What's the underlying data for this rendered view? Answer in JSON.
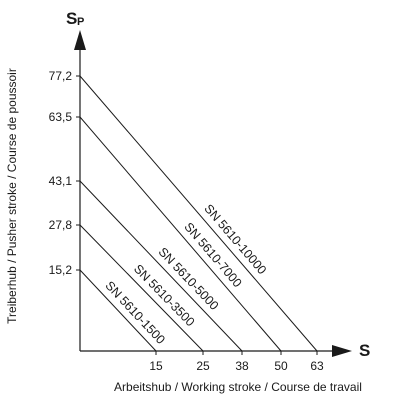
{
  "chart_data": {
    "type": "line",
    "x_axis": {
      "symbol": "S",
      "label": "Arbeitshub / Working  stroke / Course de travail",
      "ticks": [
        15,
        25,
        38,
        50,
        63
      ]
    },
    "y_axis": {
      "symbol": "S",
      "symbol_sub": "P",
      "label": "Treiberhub / Pusher stroke / Course de poussoir",
      "ticks": [
        "15,2",
        "27,8",
        "43,1",
        "63,5",
        "77,2"
      ]
    },
    "series": [
      {
        "name": "SN 5610-1500",
        "points": [
          [
            0,
            15.2
          ],
          [
            15,
            0
          ]
        ]
      },
      {
        "name": "SN 5610-3500",
        "points": [
          [
            0,
            27.8
          ],
          [
            25,
            0
          ]
        ]
      },
      {
        "name": "SN 5610-5000",
        "points": [
          [
            0,
            43.1
          ],
          [
            38,
            0
          ]
        ]
      },
      {
        "name": "SN 5610-7000",
        "points": [
          [
            0,
            63.5
          ],
          [
            50,
            0
          ]
        ]
      },
      {
        "name": "SN 5610-10000",
        "points": [
          [
            0,
            77.2
          ],
          [
            63,
            0
          ]
        ]
      }
    ],
    "grid": false,
    "legend": "none"
  }
}
